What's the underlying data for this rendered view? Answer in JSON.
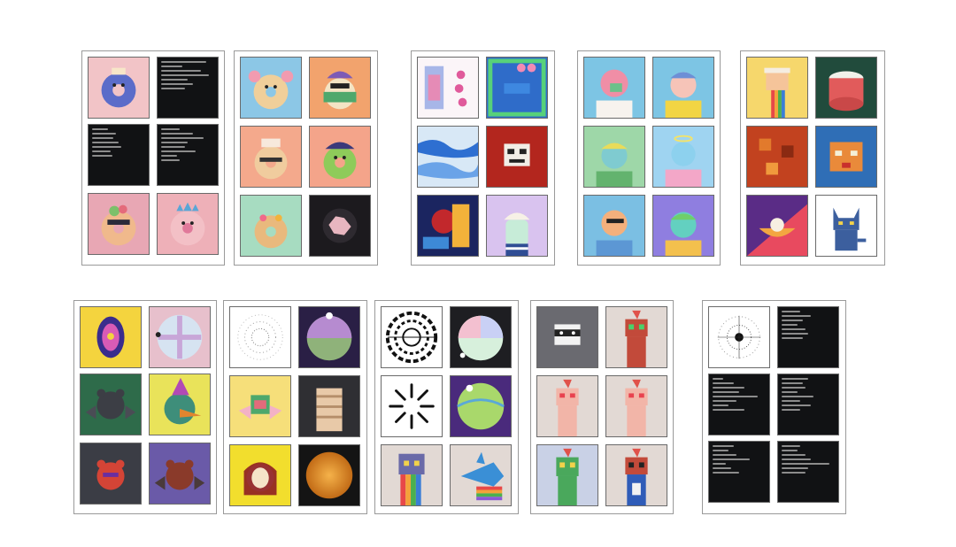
{
  "collage": {
    "description_tiles": [
      "text-tile",
      "art-tile"
    ],
    "palette": {
      "paper": "#ffffff",
      "frame": "#9a9a9a",
      "dark": "#111214",
      "pink": "#f0b7bf",
      "sky": "#8cc7e6",
      "mint": "#a7dcc1",
      "peach": "#f1a98e",
      "yellow": "#f4d43e",
      "purple": "#5a2c86"
    }
  }
}
